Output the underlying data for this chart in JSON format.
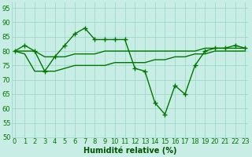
{
  "x": [
    0,
    1,
    2,
    3,
    4,
    5,
    6,
    7,
    8,
    9,
    10,
    11,
    12,
    13,
    14,
    15,
    16,
    17,
    18,
    19,
    20,
    21,
    22,
    23
  ],
  "line_main": [
    80,
    82,
    80,
    73,
    78,
    82,
    86,
    88,
    84,
    84,
    84,
    84,
    74,
    73,
    62,
    58,
    68,
    65,
    75,
    80,
    81,
    81,
    82,
    81
  ],
  "line_smooth_upper": [
    80,
    80,
    80,
    78,
    78,
    78,
    79,
    79,
    79,
    80,
    80,
    80,
    80,
    80,
    80,
    80,
    80,
    80,
    80,
    81,
    81,
    81,
    81,
    81
  ],
  "line_smooth_lower": [
    80,
    79,
    73,
    73,
    73,
    74,
    75,
    75,
    75,
    75,
    76,
    76,
    76,
    76,
    77,
    77,
    78,
    78,
    79,
    79,
    80,
    80,
    80,
    80
  ],
  "bg_color": "#c8ede4",
  "grid_color": "#a0d8cc",
  "line_color": "#007700",
  "line_width": 1.0,
  "marker": "+",
  "marker_size": 5,
  "ylim": [
    50,
    97
  ],
  "yticks": [
    50,
    55,
    60,
    65,
    70,
    75,
    80,
    85,
    90,
    95
  ],
  "xticks": [
    0,
    1,
    2,
    3,
    4,
    5,
    6,
    7,
    8,
    9,
    10,
    11,
    12,
    13,
    14,
    15,
    16,
    17,
    18,
    19,
    20,
    21,
    22,
    23
  ],
  "xlabel": "Humidité relative (%)",
  "xlabel_color": "#005500",
  "xlabel_fontsize": 7,
  "tick_fontsize": 6,
  "tick_color": "#007700"
}
